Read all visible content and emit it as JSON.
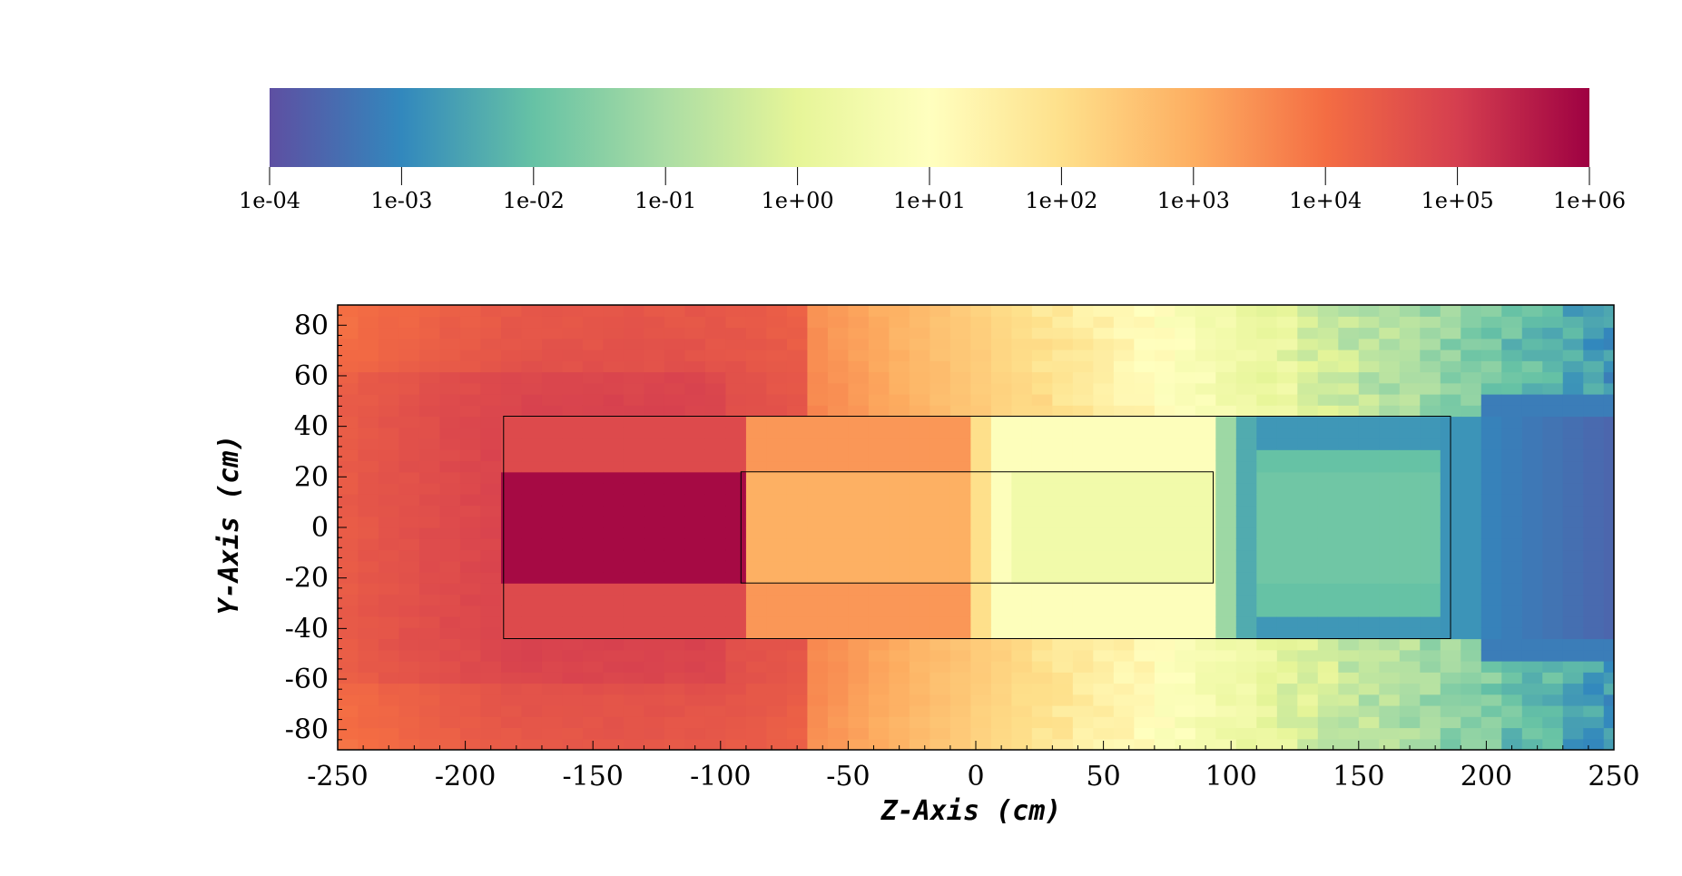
{
  "chart_data": {
    "type": "heatmap",
    "title": "",
    "xlabel": "Z-Axis (cm)",
    "ylabel": "Y-Axis (cm)",
    "xlim": [
      -250,
      250
    ],
    "ylim": [
      -88,
      88
    ],
    "x_ticks": [
      -250,
      -200,
      -150,
      -100,
      -50,
      0,
      50,
      100,
      150,
      200,
      250
    ],
    "y_ticks": [
      -80,
      -60,
      -40,
      -20,
      0,
      20,
      40,
      60,
      80
    ],
    "x_tick_labels": [
      "-250",
      "-200",
      "-150",
      "-100",
      "-50",
      "0",
      "50",
      "100",
      "150",
      "200",
      "250"
    ],
    "y_tick_labels": [
      "-80",
      "-60",
      "-40",
      "-20",
      "0",
      "20",
      "40",
      "60",
      "80"
    ],
    "colorbar": {
      "scale": "log",
      "range": [
        0.0001,
        1000000
      ],
      "tick_labels": [
        "1e-04",
        "1e-03",
        "1e-02",
        "1e-01",
        "1e+00",
        "1e+01",
        "1e+02",
        "1e+03",
        "1e+04",
        "1e+05",
        "1e+06"
      ],
      "colors": [
        "#5e4fa2",
        "#3288bd",
        "#66c2a5",
        "#abdda4",
        "#e6f598",
        "#ffffbf",
        "#fee08b",
        "#fdae61",
        "#f46d43",
        "#d53e4f",
        "#9e0142"
      ]
    },
    "regions": [
      {
        "z": [
          -185,
          186
        ],
        "y": [
          -44,
          44
        ]
      },
      {
        "z": [
          -92,
          93
        ],
        "y": [
          -22,
          22
        ]
      }
    ]
  }
}
